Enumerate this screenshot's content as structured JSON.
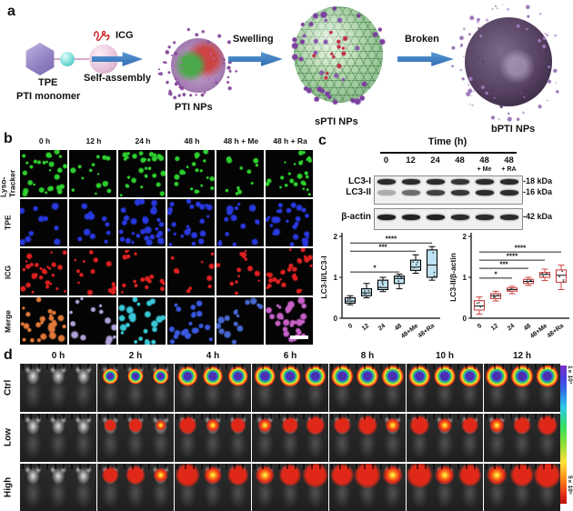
{
  "figure": {
    "panel_a": {
      "label": "a",
      "tpe_label": "TPE",
      "monomer_label": "PTI monomer",
      "icg_label": "ICG",
      "arrow1_label": "Self-assembly",
      "pti_label": "PTI NPs",
      "arrow2_label": "Swelling",
      "spti_label": "sPTI NPs",
      "arrow3_label": "Broken",
      "bpti_label": "bPTI NPs",
      "arrow_color": "#3b7ec5"
    },
    "panel_b": {
      "label": "b",
      "columns": [
        "0 h",
        "12 h",
        "24 h",
        "48 h",
        "48 h + Me",
        "48 h + Ra"
      ],
      "rows": [
        {
          "label": "Lyso-Tracker",
          "color": "#2ed02e",
          "intensity": [
            0.75,
            0.3,
            0.8,
            0.45,
            0.25,
            0.65
          ],
          "dot_min": 1.5,
          "dot_max": 4
        },
        {
          "label": "TPE",
          "color": "#2838e0",
          "intensity": [
            0.12,
            0.18,
            0.75,
            0.55,
            0.3,
            0.7
          ],
          "dot_min": 2,
          "dot_max": 5
        },
        {
          "label": "ICG",
          "color": "#e02020",
          "intensity": [
            0.75,
            0.28,
            0.35,
            0.12,
            0.28,
            0.8
          ],
          "dot_min": 1.5,
          "dot_max": 4
        },
        {
          "label": "Merge",
          "color": "#c860c8",
          "intensity": [
            0.75,
            0.28,
            0.7,
            0.5,
            0.3,
            0.8
          ],
          "dot_min": 2,
          "dot_max": 5
        }
      ],
      "merge_colors": [
        "#e07838",
        "#b0a0d8",
        "#38c8d8",
        "#3858e0",
        "#4868d0",
        "#c860c8"
      ]
    },
    "panel_c": {
      "label": "c",
      "blot": {
        "title": "Time  (h)",
        "columns": [
          "0",
          "12",
          "24",
          "48",
          "48",
          "48"
        ],
        "sub_labels": [
          "",
          "",
          "",
          "",
          "+ Me",
          "+ RA"
        ],
        "bands": [
          {
            "label": "LC3-I",
            "kda": "-18 kDa",
            "opacity": [
              0.9,
              0.9,
              0.9,
              0.85,
              0.9,
              0.9
            ]
          },
          {
            "label": "LC3-II",
            "kda": "-16 kDa",
            "opacity": [
              0.3,
              0.6,
              0.8,
              0.85,
              0.9,
              0.9
            ]
          },
          {
            "label": "β-actin",
            "kda": "-42 kDa",
            "opacity": [
              0.95,
              0.95,
              0.95,
              0.9,
              0.9,
              0.9
            ]
          }
        ]
      }
    },
    "panel_d": {
      "label": "d",
      "columns": [
        "0 h",
        "2 h",
        "4 h",
        "6 h",
        "8 h",
        "10 h",
        "12 h"
      ],
      "rows": [
        {
          "label": "Ctrl",
          "overlay": "cold"
        },
        {
          "label": "Low",
          "overlay": "hot"
        },
        {
          "label": "High",
          "overlay": "hot-strong"
        }
      ],
      "colorbar": {
        "top": "1×10⁷",
        "bottom": "5×10⁵"
      }
    }
  },
  "chart_data": [
    {
      "type": "box",
      "ylabel": "LC3-II/LC3-I",
      "categories": [
        "0",
        "12",
        "24",
        "48",
        "48+Me",
        "48+Ra"
      ],
      "ylim": [
        0,
        2
      ],
      "yticks": [
        0,
        1,
        2
      ],
      "boxes": [
        {
          "low": 0.33,
          "q1": 0.37,
          "median": 0.42,
          "q3": 0.5,
          "high": 0.55
        },
        {
          "low": 0.5,
          "q1": 0.55,
          "median": 0.62,
          "q3": 0.72,
          "high": 0.85
        },
        {
          "low": 0.65,
          "q1": 0.7,
          "median": 0.75,
          "q3": 0.93,
          "high": 1.0
        },
        {
          "low": 0.72,
          "q1": 0.85,
          "median": 0.97,
          "q3": 1.03,
          "high": 1.08
        },
        {
          "low": 1.1,
          "q1": 1.17,
          "median": 1.25,
          "q3": 1.42,
          "high": 1.55
        },
        {
          "low": 0.93,
          "q1": 1.0,
          "median": 1.3,
          "q3": 1.67,
          "high": 1.75
        }
      ],
      "significance": [
        {
          "from": 0,
          "to": 3,
          "y": 1.13,
          "label": "*"
        },
        {
          "from": 0,
          "to": 4,
          "y": 1.64,
          "label": "***"
        },
        {
          "from": 0,
          "to": 5,
          "y": 1.84,
          "label": "****"
        }
      ],
      "box_fill": "#bfe3f2",
      "box_stroke": "#000000",
      "grid": false,
      "legend": "none"
    },
    {
      "type": "box",
      "ylabel": "LC3-II/β-actin",
      "categories": [
        "0",
        "12",
        "24",
        "48",
        "48+Me",
        "48+Ra"
      ],
      "ylim": [
        0,
        2
      ],
      "yticks": [
        0,
        1,
        2
      ],
      "boxes": [
        {
          "low": 0.1,
          "q1": 0.2,
          "median": 0.3,
          "q3": 0.43,
          "high": 0.52
        },
        {
          "low": 0.42,
          "q1": 0.48,
          "median": 0.55,
          "q3": 0.6,
          "high": 0.66
        },
        {
          "low": 0.6,
          "q1": 0.66,
          "median": 0.7,
          "q3": 0.74,
          "high": 0.78
        },
        {
          "low": 0.8,
          "q1": 0.85,
          "median": 0.9,
          "q3": 0.95,
          "high": 1.0
        },
        {
          "low": 0.92,
          "q1": 1.0,
          "median": 1.07,
          "q3": 1.12,
          "high": 1.2
        },
        {
          "low": 0.7,
          "q1": 0.88,
          "median": 1.05,
          "q3": 1.18,
          "high": 1.3
        }
      ],
      "significance": [
        {
          "from": 0,
          "to": 2,
          "y": 0.98,
          "label": "*"
        },
        {
          "from": 0,
          "to": 3,
          "y": 1.22,
          "label": "***"
        },
        {
          "from": 0,
          "to": 4,
          "y": 1.42,
          "label": "****"
        },
        {
          "from": 0,
          "to": 5,
          "y": 1.62,
          "label": "****"
        }
      ],
      "box_fill": "#ffffff",
      "box_stroke": "#cf4444",
      "grid": false,
      "legend": "none"
    }
  ]
}
